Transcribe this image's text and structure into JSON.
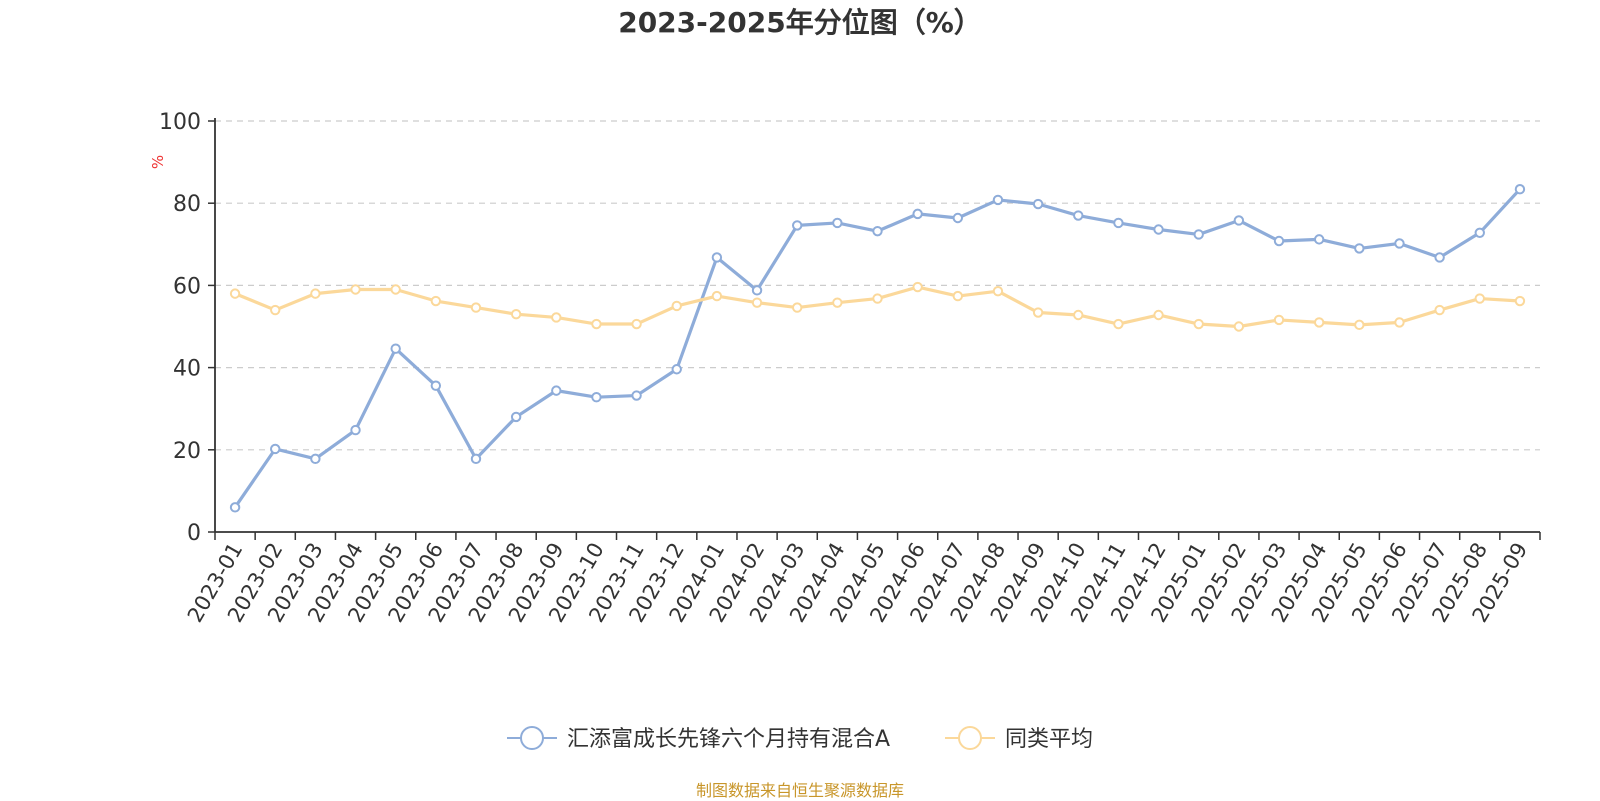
{
  "colors": {
    "series_fund": "#8eacd9",
    "series_avg": "#fbd89a",
    "axis": "#333333",
    "grid": "#cccccc",
    "ylabel": "#ee3333",
    "source": "#c8962a"
  },
  "source_note": "制图数据来自恒生聚源数据库",
  "chart_data": {
    "type": "line",
    "title": "2023-2025年分位图（%）",
    "xlabel": "",
    "ylabel": "%",
    "ylim": [
      0,
      100
    ],
    "yticks": [
      0,
      20,
      40,
      60,
      80,
      100
    ],
    "grid": true,
    "legend_position": "bottom-center",
    "categories": [
      "2023-01",
      "2023-02",
      "2023-03",
      "2023-04",
      "2023-05",
      "2023-06",
      "2023-07",
      "2023-08",
      "2023-09",
      "2023-10",
      "2023-11",
      "2023-12",
      "2024-01",
      "2024-02",
      "2024-03",
      "2024-04",
      "2024-05",
      "2024-06",
      "2024-07",
      "2024-08",
      "2024-09",
      "2024-10",
      "2024-11",
      "2024-12",
      "2025-01",
      "2025-02",
      "2025-03",
      "2025-04",
      "2025-05",
      "2025-06",
      "2025-07",
      "2025-08",
      "2025-09"
    ],
    "series": [
      {
        "name": "汇添富成长先锋六个月持有混合A",
        "color": "#8eacd9",
        "values": [
          6,
          20.2,
          17.8,
          24.8,
          44.6,
          35.6,
          17.8,
          28,
          34.4,
          32.8,
          33.2,
          39.6,
          66.8,
          58.8,
          74.6,
          75.2,
          73.2,
          77.4,
          76.4,
          80.8,
          79.8,
          77,
          75.2,
          73.6,
          72.4,
          75.8,
          70.8,
          71.2,
          69,
          70.2,
          66.8,
          72.8,
          83.4
        ]
      },
      {
        "name": "同类平均",
        "color": "#fbd89a",
        "values": [
          58,
          54,
          58,
          59,
          59,
          56.2,
          54.6,
          53,
          52.2,
          50.6,
          50.6,
          55,
          57.4,
          55.8,
          54.6,
          55.8,
          56.8,
          59.6,
          57.4,
          58.6,
          53.4,
          52.8,
          50.6,
          52.8,
          50.6,
          50,
          51.6,
          51,
          50.4,
          51,
          54,
          56.8,
          56.2
        ]
      }
    ]
  }
}
